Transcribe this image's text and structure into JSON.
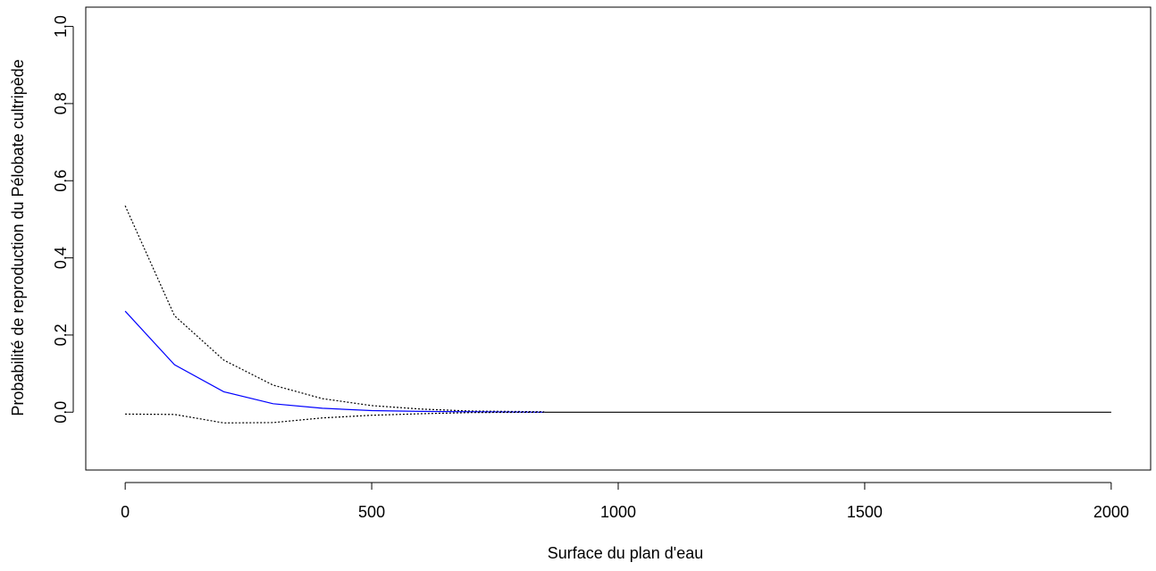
{
  "chart_data": {
    "type": "line",
    "title": "",
    "xlabel": "Surface du plan d'eau",
    "ylabel": "Probabilité de reproduction du Pélobate cultripède",
    "xlim": [
      -80,
      2080
    ],
    "ylim": [
      -0.15,
      1.05
    ],
    "x_ticks": [
      0,
      500,
      1000,
      1500,
      2000
    ],
    "y_ticks": [
      0.0,
      0.2,
      0.4,
      0.6,
      0.8,
      1.0
    ],
    "x_tick_labels": [
      "0",
      "500",
      "1000",
      "1500",
      "2000"
    ],
    "y_tick_labels": [
      "0.0",
      "0.2",
      "0.4",
      "0.6",
      "0.8",
      "1.0"
    ],
    "grid": false,
    "legend": "none",
    "series": [
      {
        "role": "upper-confidence-bound",
        "color": "#000000",
        "style": "dotted",
        "x": [
          0,
          100,
          200,
          300,
          400,
          500,
          600,
          700,
          850
        ],
        "y": [
          0.535,
          0.25,
          0.135,
          0.07,
          0.035,
          0.017,
          0.008,
          0.003,
          0.001
        ]
      },
      {
        "role": "fitted-probability",
        "color": "#0000ff",
        "style": "solid",
        "x": [
          0,
          100,
          200,
          300,
          400,
          500,
          600,
          700,
          850
        ],
        "y": [
          0.262,
          0.123,
          0.053,
          0.022,
          0.01,
          0.004,
          0.002,
          0.001,
          0.0
        ]
      },
      {
        "role": "lower-confidence-bound",
        "color": "#000000",
        "style": "dotted",
        "x": [
          0,
          100,
          200,
          300,
          400,
          500,
          600,
          700,
          850
        ],
        "y": [
          -0.005,
          -0.006,
          -0.028,
          -0.027,
          -0.015,
          -0.008,
          -0.004,
          -0.001,
          0.0
        ]
      },
      {
        "role": "zero-line",
        "color": "#000000",
        "style": "solid",
        "x": [
          850,
          2000
        ],
        "y": [
          0.0,
          0.0
        ]
      }
    ]
  }
}
